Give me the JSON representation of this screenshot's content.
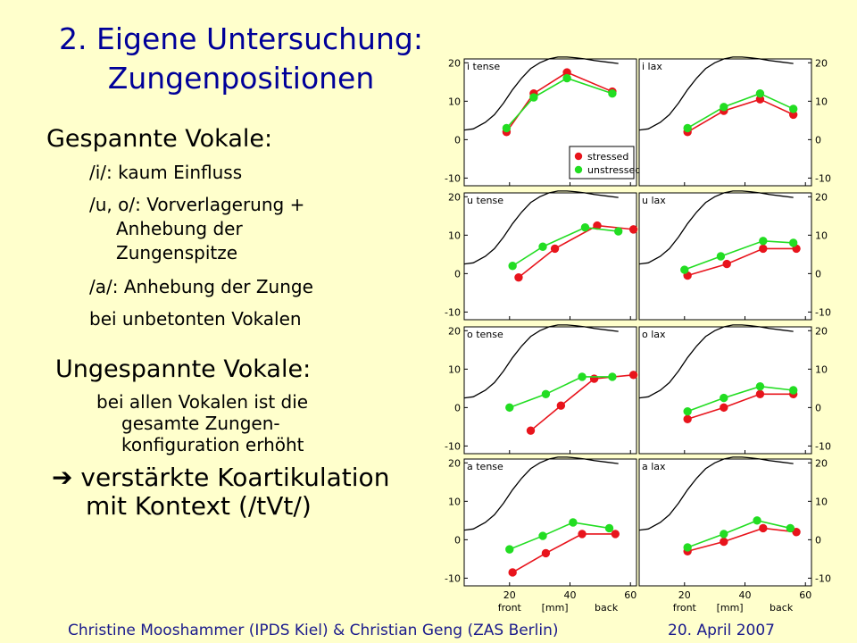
{
  "title": {
    "line1": "2. Eigene Untersuchung:",
    "line2": "Zungenpositionen"
  },
  "left": {
    "tense_heading": "Gespannte Vokale:",
    "tense_items": [
      "/i/: kaum Einfluss",
      "/u, o/: Vorverlagerung +",
      "Anhebung der",
      "Zungenspitze",
      "/a/: Anhebung der Zunge",
      "bei unbetonten Vokalen"
    ],
    "lax_heading": "Ungespannte Vokale:",
    "lax_items": [
      "bei allen Vokalen ist die",
      "gesamte Zungen-",
      "konfiguration erhöht"
    ],
    "conclusion_arrow": "➔",
    "conclusion_line1": "verstärkte Koartikulation",
    "conclusion_line2": "mit Kontext (/tVt/)"
  },
  "footer": {
    "authors": "Christine Mooshammer (IPDS Kiel) & Christian Geng (ZAS Berlin)",
    "date": "20. April 2007"
  },
  "colors": {
    "title": "#000099",
    "background": "#ffffcc",
    "stressed": "#e8141c",
    "unstressed": "#22dd22",
    "contour": "#000000"
  },
  "chart_data": {
    "type": "line",
    "xlim": [
      5,
      62
    ],
    "ylim": [
      -12,
      21
    ],
    "x_ticks": [
      20,
      40,
      60
    ],
    "y_ticks": [
      -10,
      0,
      10,
      20
    ],
    "x_tick_labels": [
      "20",
      "40",
      "60"
    ],
    "y_tick_labels": [
      "-10",
      "0",
      "10",
      "20"
    ],
    "xlabel": {
      "left": "front",
      "mid": "[mm]",
      "right": "back"
    },
    "legend": {
      "entries": [
        "stressed",
        "unstressed"
      ],
      "placement": "bottom-right of first panel"
    },
    "contour": {
      "x": [
        5,
        8,
        12,
        15,
        18,
        21,
        24,
        27,
        30,
        33,
        36,
        39,
        42,
        45,
        48,
        52,
        56
      ],
      "y": [
        2.5,
        2.8,
        4.5,
        6.5,
        9.5,
        13,
        16,
        18.5,
        20,
        21,
        21.5,
        21.5,
        21.3,
        21,
        20.6,
        20.2,
        19.8
      ]
    },
    "panels": [
      {
        "label": "i tense",
        "series": [
          {
            "name": "stressed",
            "x": [
              19,
              28,
              39,
              54
            ],
            "y": [
              2,
              12,
              17.5,
              12.5
            ]
          },
          {
            "name": "unstressed",
            "x": [
              19,
              28,
              39,
              54
            ],
            "y": [
              3,
              11,
              16,
              12
            ]
          }
        ]
      },
      {
        "label": "i lax",
        "series": [
          {
            "name": "stressed",
            "x": [
              21,
              33,
              45,
              56
            ],
            "y": [
              2,
              7.5,
              10.5,
              6.5
            ]
          },
          {
            "name": "unstressed",
            "x": [
              21,
              33,
              45,
              56
            ],
            "y": [
              3,
              8.5,
              12,
              8
            ]
          }
        ]
      },
      {
        "label": "u tense",
        "series": [
          {
            "name": "stressed",
            "x": [
              23,
              35,
              49,
              61
            ],
            "y": [
              -1,
              6.5,
              12.5,
              11.5
            ]
          },
          {
            "name": "unstressed",
            "x": [
              21,
              31,
              45,
              56
            ],
            "y": [
              2,
              7,
              12,
              11
            ]
          }
        ]
      },
      {
        "label": "u lax",
        "series": [
          {
            "name": "stressed",
            "x": [
              21,
              34,
              46,
              57
            ],
            "y": [
              -0.5,
              2.5,
              6.5,
              6.5
            ]
          },
          {
            "name": "unstressed",
            "x": [
              20,
              32,
              46,
              56
            ],
            "y": [
              1,
              4.5,
              8.5,
              8
            ]
          }
        ]
      },
      {
        "label": "o tense",
        "series": [
          {
            "name": "stressed",
            "x": [
              27,
              37,
              48,
              61
            ],
            "y": [
              -6,
              0.5,
              7.5,
              8.5
            ]
          },
          {
            "name": "unstressed",
            "x": [
              20,
              32,
              44,
              54
            ],
            "y": [
              0,
              3.5,
              8,
              8
            ]
          }
        ]
      },
      {
        "label": "o lax",
        "series": [
          {
            "name": "stressed",
            "x": [
              21,
              33,
              45,
              56
            ],
            "y": [
              -3,
              0,
              3.5,
              3.5
            ]
          },
          {
            "name": "unstressed",
            "x": [
              21,
              33,
              45,
              56
            ],
            "y": [
              -1,
              2.5,
              5.5,
              4.5
            ]
          }
        ]
      },
      {
        "label": "a tense",
        "series": [
          {
            "name": "stressed",
            "x": [
              21,
              32,
              44,
              55
            ],
            "y": [
              -8.5,
              -3.5,
              1.5,
              1.5
            ]
          },
          {
            "name": "unstressed",
            "x": [
              20,
              31,
              41,
              53
            ],
            "y": [
              -2.5,
              1,
              4.5,
              3
            ]
          }
        ]
      },
      {
        "label": "a lax",
        "series": [
          {
            "name": "stressed",
            "x": [
              21,
              33,
              46,
              57
            ],
            "y": [
              -3,
              -0.5,
              3,
              2
            ]
          },
          {
            "name": "unstressed",
            "x": [
              21,
              33,
              44,
              55
            ],
            "y": [
              -2,
              1.5,
              5,
              3
            ]
          }
        ]
      }
    ]
  }
}
